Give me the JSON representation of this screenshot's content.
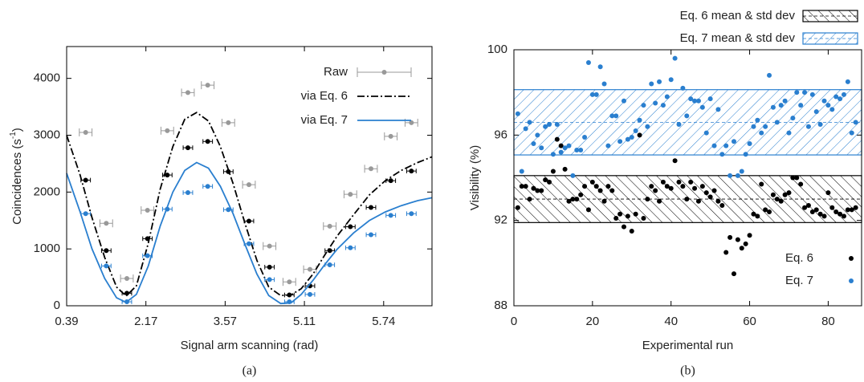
{
  "chart_data": [
    {
      "type": "scatter",
      "caption": "(a)",
      "xlabel": "Signal arm scanning (rad)",
      "ylabel": {
        "text": "Coincidences (s",
        "sup": "-1",
        "end": ")"
      },
      "xlim": [
        0,
        4.61
      ],
      "ylim": [
        0,
        4560
      ],
      "xticks": [
        {
          "value": 0,
          "label": "0.39"
        },
        {
          "value": 1,
          "label": "2.17"
        },
        {
          "value": 2,
          "label": "3.57"
        },
        {
          "value": 3,
          "label": "5.11"
        },
        {
          "value": 4,
          "label": "5.74"
        }
      ],
      "yticks": [
        0,
        1000,
        2000,
        3000,
        4000
      ],
      "legend": "upper right",
      "series": [
        {
          "name": "Raw",
          "color": "#999999",
          "xerr": 0.08,
          "yerr": 70,
          "x": [
            0.24,
            0.5,
            0.76,
            1.02,
            1.27,
            1.53,
            1.78,
            2.04,
            2.3,
            2.56,
            2.81,
            3.07,
            3.32,
            3.58,
            3.84,
            4.09,
            4.35
          ],
          "values": [
            3050,
            1450,
            480,
            1680,
            3080,
            3750,
            3880,
            3220,
            2130,
            1050,
            420,
            640,
            1400,
            1960,
            2410,
            2980,
            3220
          ]
        },
        {
          "name": "via Eq. 6",
          "color": "#000000",
          "dash": "dashdot",
          "x": [
            0,
            0.17,
            0.32,
            0.48,
            0.63,
            0.75,
            0.88,
            1.03,
            1.18,
            1.34,
            1.49,
            1.64,
            1.79,
            1.94,
            2.1,
            2.25,
            2.4,
            2.55,
            2.7,
            2.83,
            2.96,
            3.11,
            3.26,
            3.41,
            3.62,
            3.82,
            4.02,
            4.22,
            4.43,
            4.61
          ],
          "values": [
            3000,
            2300,
            1550,
            850,
            330,
            170,
            350,
            1100,
            2050,
            2800,
            3280,
            3400,
            3250,
            2800,
            2150,
            1450,
            800,
            330,
            180,
            190,
            300,
            560,
            900,
            1220,
            1600,
            1950,
            2200,
            2380,
            2520,
            2620
          ],
          "points": {
            "xerr": 0.06,
            "yerr": 40,
            "x": [
              0.24,
              0.5,
              0.76,
              1.02,
              1.27,
              1.53,
              1.78,
              2.04,
              2.3,
              2.56,
              2.81,
              3.07,
              3.32,
              3.58,
              3.84,
              4.09,
              4.35
            ],
            "values": [
              2210,
              970,
              220,
              1180,
              2300,
              2780,
              2890,
              2360,
              1490,
              680,
              190,
              350,
              970,
              1390,
              1730,
              2200,
              2370
            ]
          }
        },
        {
          "name": "via Eq. 7",
          "color": "#2a7fcf",
          "dash": "solid",
          "x": [
            0,
            0.17,
            0.32,
            0.48,
            0.63,
            0.75,
            0.88,
            1.03,
            1.18,
            1.34,
            1.49,
            1.64,
            1.79,
            1.94,
            2.1,
            2.25,
            2.4,
            2.55,
            2.7,
            2.83,
            2.96,
            3.11,
            3.26,
            3.41,
            3.62,
            3.82,
            4.02,
            4.22,
            4.43,
            4.61
          ],
          "values": [
            2330,
            1650,
            1000,
            480,
            140,
            60,
            200,
            700,
            1400,
            2000,
            2380,
            2520,
            2420,
            2100,
            1620,
            1080,
            560,
            180,
            40,
            50,
            200,
            450,
            730,
            990,
            1280,
            1500,
            1650,
            1760,
            1850,
            1900
          ],
          "points": {
            "xerr": 0.06,
            "yerr": 40,
            "x": [
              0.24,
              0.5,
              0.76,
              1.02,
              1.27,
              1.53,
              1.78,
              2.04,
              2.3,
              2.56,
              2.81,
              3.07,
              3.32,
              3.58,
              3.84,
              4.09,
              4.35
            ],
            "values": [
              1620,
              700,
              70,
              880,
              1700,
              1990,
              2100,
              1690,
              1090,
              460,
              70,
              200,
              720,
              1020,
              1250,
              1590,
              1620
            ]
          }
        }
      ]
    },
    {
      "type": "scatter",
      "caption": "(b)",
      "xlabel": "Experimental run",
      "ylabel": "Visibility (%)",
      "xlim": [
        0,
        88.5
      ],
      "ylim": [
        88,
        100
      ],
      "xticks": [
        0,
        20,
        40,
        60,
        80
      ],
      "yticks": [
        88,
        92,
        96,
        100
      ],
      "legend": "lower right",
      "band_legend": "above",
      "bands": [
        {
          "name": "Eq. 6 mean & std dev",
          "color": "#000000",
          "hatch": "back",
          "mean": 93.0,
          "std": 1.1
        },
        {
          "name": "Eq. 7 mean & std dev",
          "color": "#2a7fcf",
          "hatch": "forward",
          "mean": 96.6,
          "std": 1.53
        }
      ],
      "series": [
        {
          "name": "Eq. 6",
          "color": "#000000",
          "x": [
            1,
            2,
            3,
            4,
            5,
            6,
            7,
            8,
            9,
            10,
            11,
            12,
            13,
            14,
            15,
            16,
            17,
            18,
            19,
            20,
            21,
            22,
            23,
            24,
            25,
            26,
            27,
            28,
            29,
            30,
            31,
            32,
            33,
            34,
            35,
            36,
            37,
            38,
            39,
            40,
            41,
            42,
            43,
            44,
            45,
            46,
            47,
            48,
            49,
            50,
            51,
            52,
            53,
            54,
            55,
            56,
            57,
            58,
            59,
            60,
            61,
            62,
            63,
            64,
            65,
            66,
            67,
            68,
            69,
            70,
            71,
            72,
            73,
            74,
            75,
            76,
            77,
            78,
            79,
            80,
            81,
            82,
            83,
            84,
            85,
            86,
            87
          ],
          "values": [
            92.6,
            93.6,
            93.6,
            93.0,
            93.5,
            93.4,
            93.4,
            93.9,
            93.8,
            94.3,
            95.8,
            95.5,
            94.4,
            92.9,
            93.0,
            93.0,
            93.2,
            93.6,
            92.5,
            93.8,
            93.6,
            93.4,
            92.9,
            93.6,
            93.4,
            92.1,
            92.3,
            91.7,
            92.2,
            91.5,
            92.3,
            96.0,
            92.1,
            93.0,
            93.6,
            93.4,
            92.9,
            93.8,
            93.6,
            93.5,
            94.8,
            93.8,
            93.6,
            93.0,
            93.8,
            93.5,
            92.9,
            93.6,
            93.3,
            93.1,
            93.4,
            92.9,
            92.7,
            90.5,
            91.2,
            89.5,
            91.1,
            90.7,
            90.9,
            91.3,
            92.3,
            92.2,
            93.7,
            92.5,
            92.4,
            93.2,
            93.0,
            92.9,
            93.2,
            93.3,
            94.0,
            94.0,
            93.7,
            92.6,
            92.7,
            92.4,
            92.5,
            92.3,
            92.2,
            93.3,
            92.6,
            92.4,
            92.3,
            92.2,
            92.5,
            92.5,
            92.6
          ]
        },
        {
          "name": "Eq. 7",
          "color": "#2a7fcf",
          "x": [
            1,
            2,
            3,
            4,
            5,
            6,
            7,
            8,
            9,
            10,
            11,
            12,
            13,
            14,
            15,
            16,
            17,
            18,
            19,
            20,
            21,
            22,
            23,
            24,
            25,
            26,
            27,
            28,
            29,
            30,
            31,
            32,
            33,
            34,
            35,
            36,
            37,
            38,
            39,
            40,
            41,
            42,
            43,
            44,
            45,
            46,
            47,
            48,
            49,
            50,
            51,
            52,
            53,
            54,
            55,
            56,
            57,
            58,
            59,
            60,
            61,
            62,
            63,
            64,
            65,
            66,
            67,
            68,
            69,
            70,
            71,
            72,
            73,
            74,
            75,
            76,
            77,
            78,
            79,
            80,
            81,
            82,
            83,
            84,
            85,
            86,
            87
          ],
          "values": [
            97.0,
            94.3,
            96.3,
            96.6,
            95.6,
            96.0,
            95.4,
            96.4,
            96.5,
            95.1,
            96.5,
            95.2,
            95.4,
            95.5,
            94.1,
            95.3,
            95.3,
            95.9,
            99.4,
            97.9,
            97.9,
            99.2,
            98.4,
            95.5,
            96.9,
            96.9,
            95.7,
            97.6,
            95.8,
            95.9,
            96.2,
            96.7,
            97.4,
            96.4,
            98.4,
            97.5,
            98.5,
            97.4,
            97.8,
            98.6,
            99.6,
            96.5,
            98.2,
            96.9,
            97.7,
            97.6,
            97.6,
            97.3,
            96.1,
            97.7,
            95.5,
            97.2,
            95.1,
            95.5,
            94.1,
            95.7,
            94.1,
            94.3,
            95.1,
            95.6,
            96.4,
            96.7,
            96.1,
            96.4,
            98.8,
            97.3,
            96.6,
            97.4,
            97.6,
            96.1,
            96.8,
            98.0,
            97.4,
            98.0,
            96.4,
            97.9,
            97.1,
            96.5,
            97.6,
            97.4,
            97.2,
            97.8,
            97.7,
            97.9,
            98.5,
            96.1,
            96.6
          ]
        }
      ]
    }
  ]
}
